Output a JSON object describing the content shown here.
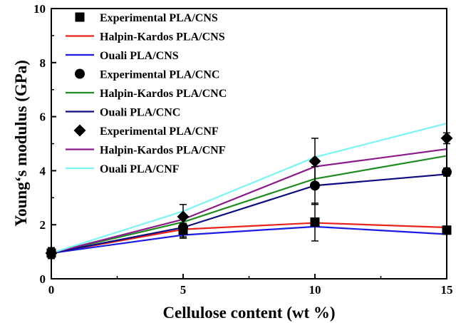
{
  "chart_data": {
    "type": "line",
    "title": "",
    "xlabel": "Cellulose content (wt %)",
    "ylabel": "Young‘s modulus (GPa)",
    "xlim": [
      0,
      15
    ],
    "ylim": [
      0,
      10
    ],
    "xticks": [
      "0",
      "5",
      "10",
      "15"
    ],
    "yticks": [
      "0",
      "2",
      "4",
      "6",
      "8",
      "10"
    ],
    "grid": false,
    "legend_position": "top-left",
    "x": [
      0,
      5,
      10,
      15
    ],
    "series": [
      {
        "name": "Experimental PLA/CNS",
        "kind": "scatter",
        "marker": "square",
        "color": "#000000",
        "values": [
          0.95,
          1.8,
          2.1,
          1.8
        ],
        "errors": [
          0.2,
          0.25,
          0.7,
          0.15
        ]
      },
      {
        "name": "Halpin-Kardos PLA/CNS",
        "kind": "line",
        "color": "#e8231b",
        "values": [
          0.95,
          1.83,
          2.07,
          1.9
        ]
      },
      {
        "name": "Ouali PLA/CNS",
        "kind": "line",
        "color": "#1c1ce0",
        "values": [
          0.95,
          1.62,
          1.93,
          1.65
        ]
      },
      {
        "name": "Experimental PLA/CNC",
        "kind": "scatter",
        "marker": "circle",
        "color": "#000000",
        "values": [
          0.95,
          1.9,
          3.45,
          3.95
        ],
        "errors": [
          0.2,
          0.4,
          0.7,
          0.15
        ]
      },
      {
        "name": "Halpin-Kardos PLA/CNC",
        "kind": "line",
        "color": "#1f8c1f",
        "values": [
          0.95,
          2.1,
          3.7,
          4.55
        ]
      },
      {
        "name": "Ouali PLA/CNC",
        "kind": "line",
        "color": "#0c0c80",
        "values": [
          0.95,
          1.9,
          3.45,
          3.87
        ]
      },
      {
        "name": "Experimental PLA/CNF",
        "kind": "scatter",
        "marker": "diamond",
        "color": "#000000",
        "values": [
          0.95,
          2.3,
          4.35,
          5.2
        ],
        "errors": [
          0.2,
          0.45,
          0.85,
          0.2
        ]
      },
      {
        "name": "Halpin-Kardos PLA/CNF",
        "kind": "line",
        "color": "#8a1a8a",
        "values": [
          0.95,
          2.2,
          4.15,
          4.8
        ]
      },
      {
        "name": "Ouali PLA/CNF",
        "kind": "line",
        "color": "#7af5f5",
        "values": [
          0.95,
          2.5,
          4.5,
          5.75
        ]
      }
    ]
  }
}
